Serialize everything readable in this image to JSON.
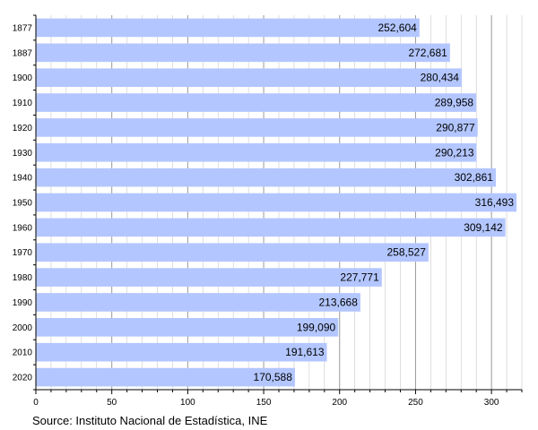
{
  "chart_data": {
    "type": "bar",
    "orientation": "horizontal",
    "title": "",
    "xlabel": "",
    "ylabel": "",
    "categories": [
      "1877",
      "1887",
      "1900",
      "1910",
      "1920",
      "1930",
      "1940",
      "1950",
      "1960",
      "1970",
      "1980",
      "1990",
      "2000",
      "2010",
      "2020"
    ],
    "values": [
      252604,
      272681,
      280434,
      289958,
      290877,
      290213,
      302861,
      316493,
      309142,
      258527,
      227771,
      213668,
      199090,
      191613,
      170588
    ],
    "value_labels": [
      "252,604",
      "272,681",
      "280,434",
      "289,958",
      "290,877",
      "290,213",
      "302,861",
      "316,493",
      "309,142",
      "258,527",
      "227,771",
      "213,668",
      "199,090",
      "191,613",
      "170,588"
    ],
    "xlim": [
      0,
      320000
    ],
    "x_ticks": [
      0,
      50000,
      100000,
      150000,
      200000,
      250000,
      300000
    ],
    "x_tick_labels": [
      "0",
      "50",
      "100",
      "150",
      "200",
      "250",
      "300"
    ],
    "minor_tick_step": 10000,
    "grid": "vertical",
    "bar_color": "#b3c6ff",
    "grid_color": "#c8c8c8",
    "major_grid_color": "#999999"
  },
  "source": "Source: Instituto Nacional de Estadística, INE"
}
